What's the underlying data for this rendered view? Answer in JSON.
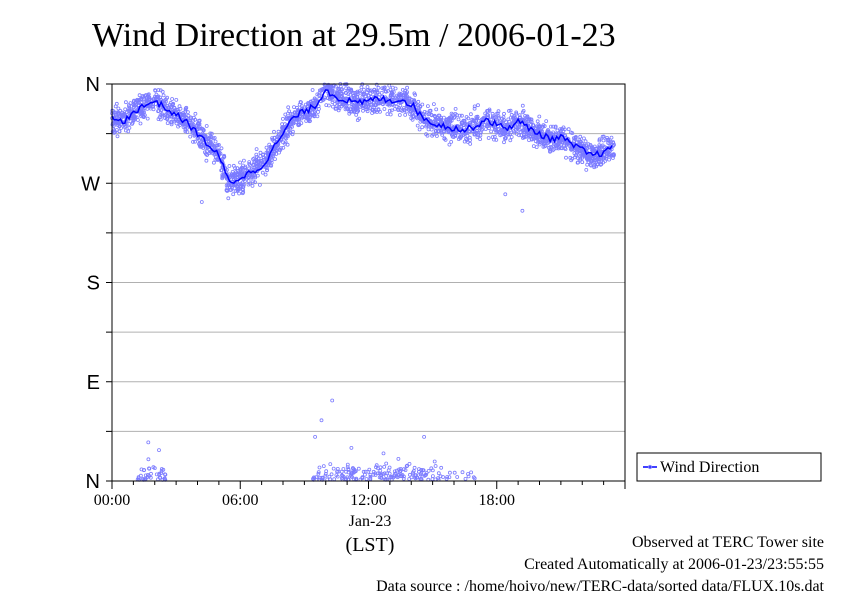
{
  "chart_data": {
    "type": "scatter",
    "title": "Wind Direction at 29.5m / 2006-01-23",
    "xlabel": "(LST)",
    "date_label": "Jan-23",
    "x_unit": "hours (LST)",
    "xlim": [
      0,
      24
    ],
    "x_ticks": [
      {
        "value": 0,
        "label": "00:00"
      },
      {
        "value": 6,
        "label": "06:00"
      },
      {
        "value": 12,
        "label": "12:00"
      },
      {
        "value": 18,
        "label": "18:00"
      }
    ],
    "y_unit": "degrees",
    "ylim": [
      0,
      360
    ],
    "y_ticks": [
      {
        "value": 0,
        "label": "N"
      },
      {
        "value": 90,
        "label": "E"
      },
      {
        "value": 180,
        "label": "S"
      },
      {
        "value": 270,
        "label": "W"
      },
      {
        "value": 360,
        "label": "N"
      }
    ],
    "grid": true,
    "legend": {
      "position": "right",
      "entries": [
        "Wind Direction"
      ]
    },
    "series": [
      {
        "name": "Wind Direction",
        "color": "#0000ff",
        "scatter_color": "#7b7bff",
        "mean_line": [
          [
            0.0,
            330
          ],
          [
            0.5,
            325
          ],
          [
            1.0,
            335
          ],
          [
            1.5,
            340
          ],
          [
            2.0,
            345
          ],
          [
            2.5,
            338
          ],
          [
            3.0,
            332
          ],
          [
            3.5,
            325
          ],
          [
            4.0,
            315
          ],
          [
            4.5,
            305
          ],
          [
            5.0,
            295
          ],
          [
            5.5,
            270
          ],
          [
            6.0,
            275
          ],
          [
            6.5,
            280
          ],
          [
            7.0,
            285
          ],
          [
            7.5,
            300
          ],
          [
            8.0,
            315
          ],
          [
            8.5,
            330
          ],
          [
            9.0,
            335
          ],
          [
            9.5,
            340
          ],
          [
            10.0,
            355
          ],
          [
            10.5,
            348
          ],
          [
            11.0,
            345
          ],
          [
            11.5,
            342
          ],
          [
            12.0,
            345
          ],
          [
            12.5,
            347
          ],
          [
            13.0,
            345
          ],
          [
            13.5,
            346
          ],
          [
            14.0,
            342
          ],
          [
            14.5,
            330
          ],
          [
            15.0,
            325
          ],
          [
            15.5,
            322
          ],
          [
            16.0,
            320
          ],
          [
            16.5,
            318
          ],
          [
            17.0,
            322
          ],
          [
            17.5,
            328
          ],
          [
            18.0,
            323
          ],
          [
            18.5,
            320
          ],
          [
            19.0,
            326
          ],
          [
            19.5,
            320
          ],
          [
            20.0,
            315
          ],
          [
            20.5,
            310
          ],
          [
            21.0,
            312
          ],
          [
            21.5,
            305
          ],
          [
            22.0,
            300
          ],
          [
            22.5,
            295
          ],
          [
            23.0,
            298
          ],
          [
            23.5,
            302
          ]
        ],
        "scatter_spread_deg": 9,
        "near_north_outliers": [
          [
            1.7,
            35
          ],
          [
            2.2,
            28
          ],
          [
            1.5,
            10
          ],
          [
            10.3,
            73
          ],
          [
            9.8,
            55
          ],
          [
            9.5,
            40
          ],
          [
            11.2,
            30
          ],
          [
            12.7,
            25
          ],
          [
            13.4,
            20
          ],
          [
            14.6,
            40
          ],
          [
            15.4,
            12
          ],
          [
            16.4,
            8
          ],
          [
            19.2,
            245
          ],
          [
            18.4,
            260
          ],
          [
            4.2,
            253
          ]
        ]
      }
    ]
  },
  "footer": {
    "observed": "Observed at TERC Tower site",
    "created": "Created Automatically at 2006-01-23/23:55:55",
    "source": "Data source : /home/hoivo/new/TERC-data/sorted  data/FLUX.10s.dat"
  }
}
